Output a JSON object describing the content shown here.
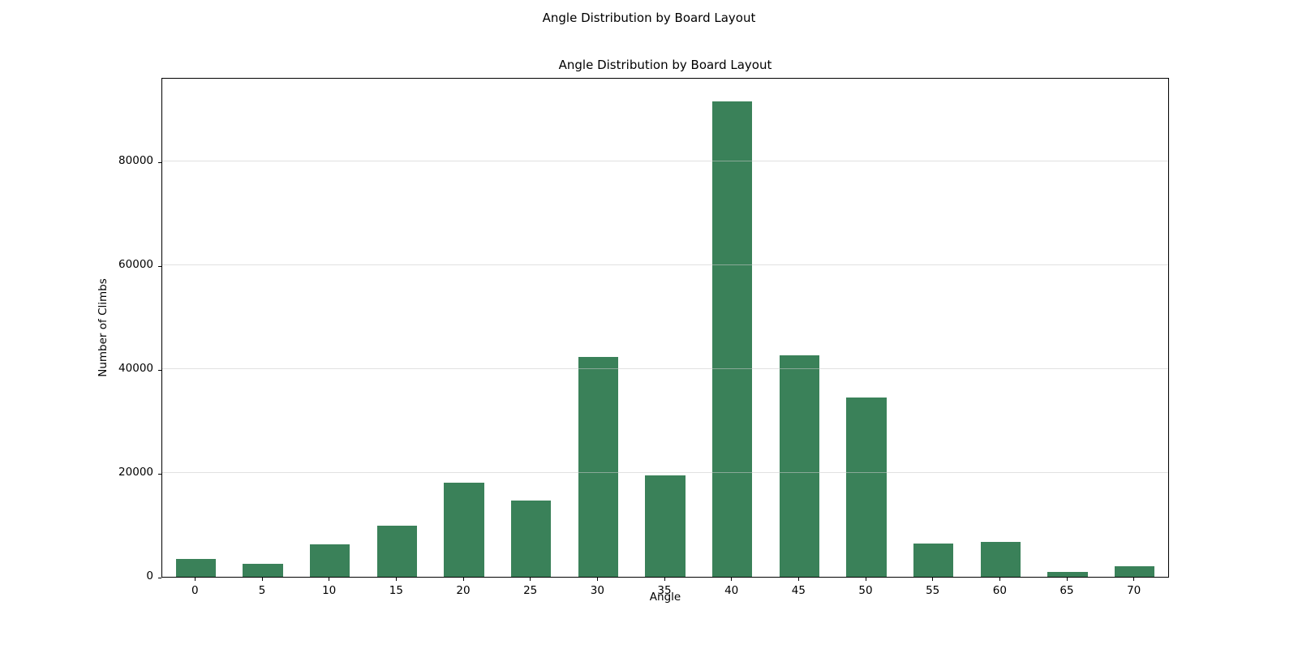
{
  "figure": {
    "suptitle": "Angle Distribution by Board Layout",
    "background_color": "#ffffff"
  },
  "chart_data": {
    "type": "bar",
    "title": "Angle Distribution by Board Layout",
    "xlabel": "Angle",
    "ylabel": "Number of Climbs",
    "categories": [
      "0",
      "5",
      "10",
      "15",
      "20",
      "25",
      "30",
      "35",
      "40",
      "45",
      "50",
      "55",
      "60",
      "65",
      "70"
    ],
    "values": [
      3500,
      2500,
      6200,
      9800,
      18200,
      14700,
      42400,
      19600,
      91600,
      42700,
      34600,
      6400,
      6700,
      950,
      2100
    ],
    "series_name": "Number of Climbs",
    "yticks": [
      0,
      20000,
      40000,
      60000,
      80000
    ],
    "ylim": [
      0,
      96000
    ],
    "bar_color": "#3a8159",
    "bar_width_fraction": 0.6,
    "grid": "horizontal",
    "gridline_color": "rgba(200,200,200,0.55)",
    "spine_color": "#000000",
    "legend": "none"
  }
}
